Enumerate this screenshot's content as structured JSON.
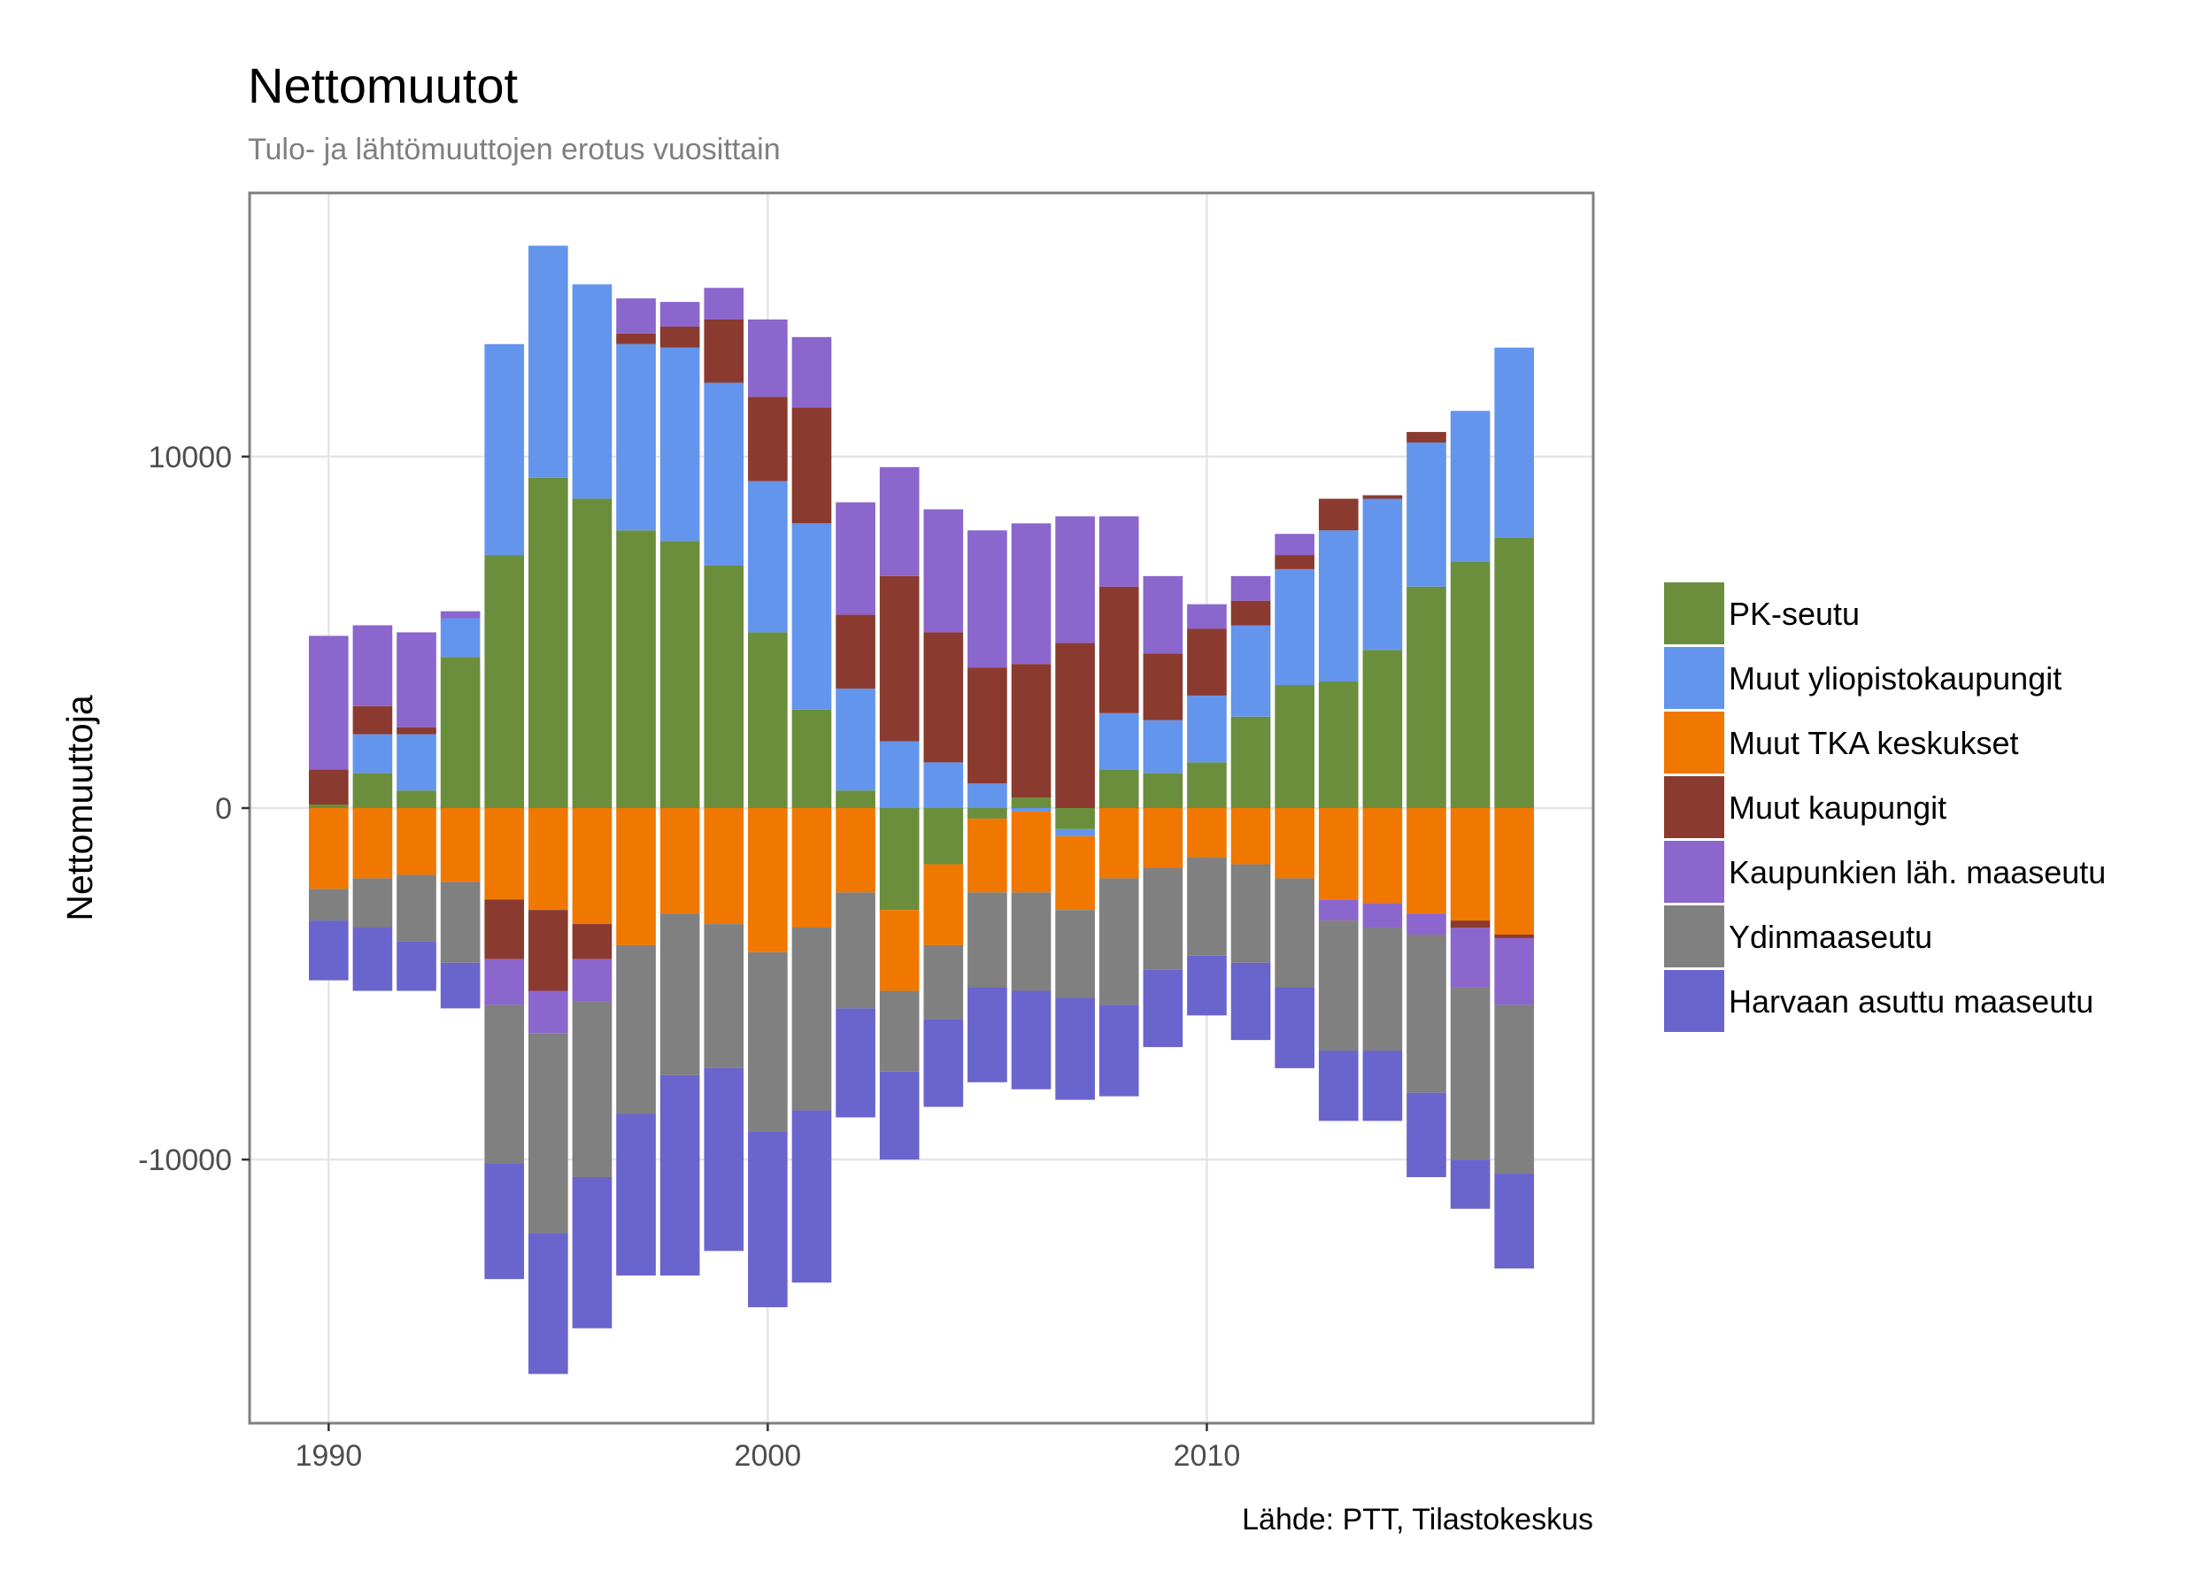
{
  "chart_data": {
    "type": "bar",
    "stacked": true,
    "title": "Nettomuutot",
    "subtitle": "Tulo- ja lähtömuuttojen erotus vuosittain",
    "xlabel": "",
    "ylabel": "Nettomuuttoja",
    "caption": "Lähde: PTT, Tilastokeskus",
    "xlim": [
      1988.2,
      2018.8
    ],
    "ylim": [
      -17500,
      17500
    ],
    "x_ticks": [
      1990,
      2000,
      2010
    ],
    "x_tick_labels": [
      "1990",
      "2000",
      "2010"
    ],
    "y_ticks": [
      10000,
      0,
      -10000
    ],
    "y_tick_labels": [
      "10000",
      "0",
      "-10000"
    ],
    "grid": true,
    "legend_position": "right",
    "x": [
      1990,
      1991,
      1992,
      1993,
      1994,
      1995,
      1996,
      1997,
      1998,
      1999,
      2000,
      2001,
      2002,
      2003,
      2004,
      2005,
      2006,
      2007,
      2008,
      2009,
      2010,
      2011,
      2012,
      2013,
      2014,
      2015,
      2016,
      2017
    ],
    "series": [
      {
        "name": "PK-seutu",
        "color": "#6b8e3d",
        "values": [
          100,
          1000,
          500,
          4300,
          7200,
          9400,
          8800,
          7900,
          7600,
          6900,
          5000,
          2800,
          500,
          -2900,
          -1600,
          -300,
          300,
          -600,
          1100,
          1000,
          1300,
          2600,
          3500,
          3600,
          4500,
          6300,
          7000,
          7700
        ]
      },
      {
        "name": "Muut yliopistokaupungit",
        "color": "#6495ed",
        "values": [
          0,
          1100,
          1600,
          1100,
          6000,
          6600,
          6100,
          5300,
          5500,
          5200,
          4300,
          5300,
          2900,
          1900,
          1300,
          700,
          -100,
          -200,
          1600,
          1500,
          1900,
          2600,
          3300,
          4300,
          4300,
          4100,
          4300,
          5400
        ]
      },
      {
        "name": "Muut TKA keskukset",
        "color": "#f07800",
        "values": [
          -2300,
          -2000,
          -1900,
          -2100,
          -2600,
          -2900,
          -3300,
          -3900,
          -3000,
          -3300,
          -4100,
          -3400,
          -2400,
          -2300,
          -2300,
          -2100,
          -2300,
          -2100,
          -2000,
          -1700,
          -1400,
          -1600,
          -2000,
          -2600,
          -2700,
          -3000,
          -3200,
          -3600
        ]
      },
      {
        "name": "Muut kaupungit",
        "color": "#8b3a2f",
        "values": [
          1000,
          800,
          200,
          0,
          -1700,
          -2300,
          -1000,
          300,
          600,
          1800,
          2400,
          3300,
          2100,
          4700,
          3700,
          3300,
          3800,
          4700,
          3600,
          1900,
          1900,
          700,
          400,
          900,
          100,
          300,
          -200,
          -100
        ]
      },
      {
        "name": "Kaupunkien läh. maaseutu",
        "color": "#8b66cc",
        "values": [
          3800,
          2300,
          2700,
          200,
          -1300,
          -1200,
          -1200,
          1000,
          700,
          900,
          2200,
          2000,
          3200,
          3100,
          3500,
          3900,
          4000,
          3600,
          2000,
          2200,
          700,
          700,
          600,
          -600,
          -700,
          -600,
          -1700,
          -1900
        ]
      },
      {
        "name": "Ydinmaaseutu",
        "color": "#808080",
        "values": [
          -900,
          -1400,
          -1900,
          -2300,
          -4500,
          -5700,
          -5000,
          -4800,
          -4600,
          -4100,
          -5100,
          -5200,
          -3300,
          -2300,
          -2100,
          -2700,
          -2800,
          -2500,
          -3600,
          -2900,
          -2800,
          -2800,
          -3100,
          -3700,
          -3500,
          -4500,
          -4900,
          -4800
        ]
      },
      {
        "name": "Harvaan asuttu maaseutu",
        "color": "#6a64cd",
        "values": [
          -1700,
          -1800,
          -1400,
          -1300,
          -3300,
          -4000,
          -4300,
          -4600,
          -5700,
          -5200,
          -5000,
          -4900,
          -3100,
          -2500,
          -2500,
          -2700,
          -2800,
          -2900,
          -2600,
          -2200,
          -1700,
          -2200,
          -2300,
          -2000,
          -2000,
          -2400,
          -1400,
          -2700
        ]
      }
    ]
  }
}
